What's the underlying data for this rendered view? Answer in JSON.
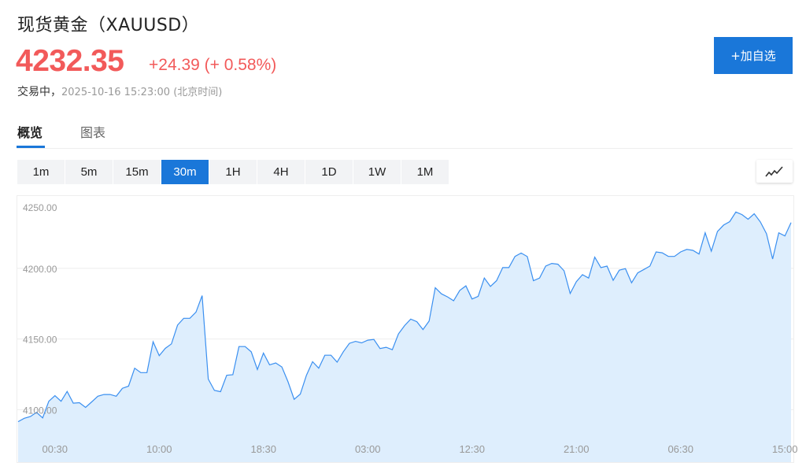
{
  "header": {
    "title": "现货黄金（XAUUSD）",
    "price": "4232.35",
    "change": "+24.39 (+ 0.58%)",
    "status": "交易中，",
    "timestamp": "2025-10-16 15:23:00 (北京时间)",
    "watchlist_button": "+加自选"
  },
  "tabs": [
    {
      "label": "概览",
      "active": true
    },
    {
      "label": "图表",
      "active": false
    }
  ],
  "periods": [
    {
      "label": "1m"
    },
    {
      "label": "5m"
    },
    {
      "label": "15m"
    },
    {
      "label": "30m",
      "active": true
    },
    {
      "label": "1H"
    },
    {
      "label": "4H"
    },
    {
      "label": "1D"
    },
    {
      "label": "1W"
    },
    {
      "label": "1M"
    }
  ],
  "chart_type_icon": "line-chart-icon",
  "colors": {
    "accent": "#1a77d9",
    "up": "#f25a5a",
    "line": "#3a8ff0",
    "fill": "#deeefd"
  },
  "chart_data": {
    "type": "area",
    "interval": "30m",
    "ylim": [
      4063,
      4250
    ],
    "y_ticks": [
      {
        "value": 4250,
        "label": "4250.00"
      },
      {
        "value": 4200,
        "label": "4200.00"
      },
      {
        "value": 4150,
        "label": "4150.00"
      },
      {
        "value": 4100,
        "label": "4100.00"
      }
    ],
    "x_ticks": [
      {
        "index": 6,
        "label": "00:30"
      },
      {
        "index": 23,
        "label": "10:00"
      },
      {
        "index": 40,
        "label": "18:30"
      },
      {
        "index": 57,
        "label": "03:00"
      },
      {
        "index": 74,
        "label": "12:30"
      },
      {
        "index": 91,
        "label": "21:00"
      },
      {
        "index": 108,
        "label": "06:30"
      },
      {
        "index": 125,
        "label": "15:00"
      }
    ],
    "grid": true,
    "values": [
      4091.6,
      4094.0,
      4095.2,
      4098.2,
      4094.3,
      4106.0,
      4110.0,
      4106.0,
      4113.0,
      4104.7,
      4105.0,
      4101.7,
      4105.6,
      4109.6,
      4110.8,
      4110.8,
      4109.6,
      4115.2,
      4116.7,
      4129.4,
      4126.3,
      4126.3,
      4148.1,
      4138.3,
      4143.4,
      4146.6,
      4159.9,
      4164.7,
      4164.7,
      4169.1,
      4180.7,
      4121.7,
      4113.7,
      4112.8,
      4124.4,
      4124.8,
      4144.7,
      4144.7,
      4141.0,
      4128.5,
      4140.1,
      4131.8,
      4133.1,
      4130.3,
      4119.8,
      4107.4,
      4111.1,
      4124.4,
      4134.0,
      4129.4,
      4138.6,
      4138.6,
      4133.7,
      4141.0,
      4147.0,
      4148.4,
      4147.3,
      4149.2,
      4149.7,
      4143.3,
      4144.2,
      4142.5,
      4153.6,
      4159.5,
      4164.1,
      4162.3,
      4156.7,
      4162.8,
      4186.3,
      4182.0,
      4179.8,
      4177.1,
      4184.4,
      4187.6,
      4178.3,
      4180.2,
      4193.1,
      4187.2,
      4191.3,
      4200.5,
      4200.5,
      4208.4,
      4210.8,
      4208.3,
      4191.3,
      4193.1,
      4201.6,
      4203.5,
      4202.9,
      4198.3,
      4182.2,
      4190.5,
      4195.5,
      4193.1,
      4207.9,
      4200.5,
      4201.6,
      4191.5,
      4198.7,
      4199.8,
      4189.8,
      4196.8,
      4199.2,
      4201.6,
      4211.6,
      4211.0,
      4208.4,
      4208.4,
      4211.6,
      4213.4,
      4212.7,
      4210.1,
      4225.1,
      4212.1,
      4226.0,
      4230.6,
      4233.0,
      4239.8,
      4238.0,
      4234.7,
      4238.6,
      4232.8,
      4224.5,
      4206.6,
      4225.1,
      4222.9,
      4232.35
    ]
  }
}
